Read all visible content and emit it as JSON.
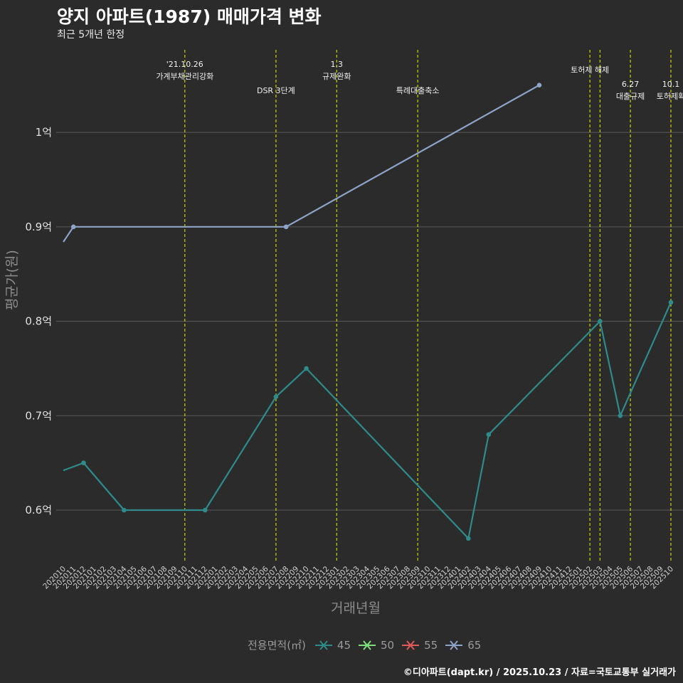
{
  "title": "양지 아파트(1987) 매매가격 변화",
  "subtitle": "최근 5개년 한정",
  "caption": "©디아파트(dapt.kr) / 2025.10.23 / 자료=국토교통부 실거래가",
  "colors": {
    "background": "#2b2b2b",
    "grid": "#5a5a5a",
    "vline": "#c8d400",
    "s45": "#2e8b8a",
    "s50": "#7fe07f",
    "s55": "#e05a5a",
    "s65": "#8ea4c8"
  },
  "chart_data": {
    "type": "line",
    "title": "양지 아파트(1987) 매매가격 변화",
    "subtitle": "최근 5개년 한정",
    "xlabel": "거래년월",
    "ylabel": "평균가(원)",
    "ylim_eok": [
      0.545,
      1.095
    ],
    "yticks": [
      {
        "value": 0.6,
        "label": "0.6억"
      },
      {
        "value": 0.7,
        "label": "0.7억"
      },
      {
        "value": 0.8,
        "label": "0.8억"
      },
      {
        "value": 0.9,
        "label": "0.9억"
      },
      {
        "value": 1.0,
        "label": "1억"
      }
    ],
    "x_categories": [
      "202010",
      "202011",
      "202012",
      "202101",
      "202102",
      "202103",
      "202104",
      "202105",
      "202106",
      "202107",
      "202108",
      "202109",
      "202110",
      "202111",
      "202112",
      "202201",
      "202202",
      "202203",
      "202204",
      "202205",
      "202206",
      "202207",
      "202208",
      "202209",
      "202210",
      "202211",
      "202212",
      "202301",
      "202302",
      "202303",
      "202304",
      "202305",
      "202306",
      "202307",
      "202308",
      "202309",
      "202310",
      "202311",
      "202312",
      "202401",
      "202402",
      "202403",
      "202404",
      "202405",
      "202406",
      "202407",
      "202408",
      "202409",
      "202410",
      "202411",
      "202412",
      "202501",
      "202502",
      "202503",
      "202504",
      "202505",
      "202506",
      "202507",
      "202508",
      "202509",
      "202510"
    ],
    "legend_title": "전용면적(㎡)",
    "legend": [
      "45",
      "50",
      "55",
      "65"
    ],
    "series": [
      {
        "name": "45",
        "color_key": "s45",
        "line_start": 0.642,
        "points": [
          {
            "x": "202012",
            "y": 0.65
          },
          {
            "x": "202104",
            "y": 0.6
          },
          {
            "x": "202112",
            "y": 0.6
          },
          {
            "x": "202207",
            "y": 0.72
          },
          {
            "x": "202210",
            "y": 0.75
          },
          {
            "x": "202402",
            "y": 0.57
          },
          {
            "x": "202404",
            "y": 0.68
          },
          {
            "x": "202503",
            "y": 0.8
          },
          {
            "x": "202505",
            "y": 0.7
          },
          {
            "x": "202510",
            "y": 0.82
          }
        ]
      },
      {
        "name": "65",
        "color_key": "s65",
        "line_start": 0.884,
        "points": [
          {
            "x": "202011",
            "y": 0.9
          },
          {
            "x": "202208",
            "y": 0.9
          },
          {
            "x": "202409",
            "y": 1.05
          }
        ]
      }
    ],
    "events": [
      {
        "x": "202110",
        "line1": "'21.10.26",
        "line2": "가계부채관리강화",
        "row": "top"
      },
      {
        "x": "202207",
        "line1": "",
        "line2": "DSR 3단계",
        "row": "low"
      },
      {
        "x": "202301",
        "line1": "1.3",
        "line2": "규제완화",
        "row": "top"
      },
      {
        "x": "202309",
        "line1": "",
        "line2": "특례대출축소",
        "row": "low"
      },
      {
        "x": "202502",
        "line1": "",
        "line2": "토허제 해제",
        "row": "mid"
      },
      {
        "x": "202503",
        "line1": "",
        "line2": "",
        "row": "none"
      },
      {
        "x": "202506",
        "line1": "6.27",
        "line2": "대출규제",
        "row": "right"
      },
      {
        "x": "202510",
        "line1": "10.1",
        "line2": "토허제확",
        "row": "right"
      }
    ]
  }
}
